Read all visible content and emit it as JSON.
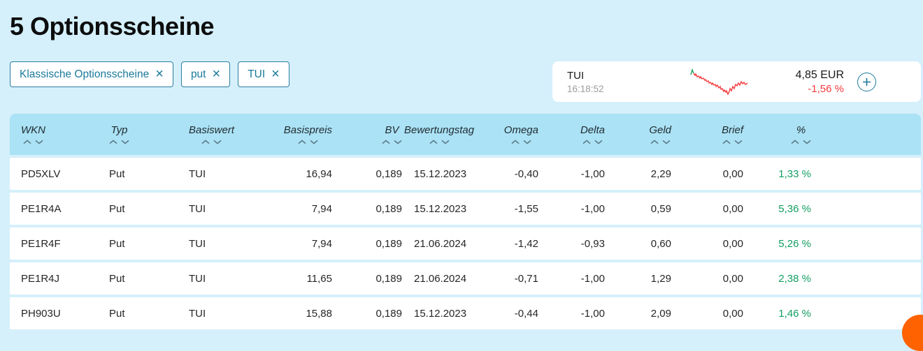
{
  "page": {
    "title": "5 Optionsscheine"
  },
  "filters": {
    "chips": [
      {
        "label": "Klassische Optionsscheine"
      },
      {
        "label": "put"
      },
      {
        "label": "TUI"
      }
    ],
    "remove_icon": "×"
  },
  "quote": {
    "name": "TUI",
    "time": "16:18:52",
    "price": "4,85 EUR",
    "change": "-1,56 %",
    "sparkline": {
      "green": [
        [
          3,
          11
        ],
        [
          5,
          4
        ],
        [
          7,
          9
        ]
      ],
      "red": [
        [
          7,
          9
        ],
        [
          9,
          12
        ],
        [
          10,
          10
        ],
        [
          12,
          14
        ],
        [
          14,
          13
        ],
        [
          16,
          16
        ],
        [
          17,
          14
        ],
        [
          19,
          17
        ],
        [
          21,
          16
        ],
        [
          23,
          19
        ],
        [
          24,
          18
        ],
        [
          26,
          21
        ],
        [
          28,
          20
        ],
        [
          29,
          23
        ],
        [
          31,
          22
        ],
        [
          33,
          25
        ],
        [
          34,
          23
        ],
        [
          36,
          26
        ],
        [
          38,
          25
        ],
        [
          39,
          28
        ],
        [
          41,
          26
        ],
        [
          43,
          30
        ],
        [
          45,
          28
        ],
        [
          46,
          32
        ],
        [
          48,
          31
        ],
        [
          50,
          35
        ],
        [
          51,
          33
        ],
        [
          53,
          36
        ],
        [
          54,
          34
        ],
        [
          56,
          39
        ],
        [
          58,
          35
        ],
        [
          59,
          31
        ],
        [
          61,
          34
        ],
        [
          63,
          28
        ],
        [
          65,
          31
        ],
        [
          67,
          25
        ],
        [
          69,
          27
        ],
        [
          71,
          23
        ],
        [
          73,
          26
        ],
        [
          75,
          21
        ],
        [
          77,
          24
        ],
        [
          79,
          22
        ],
        [
          81,
          25
        ],
        [
          84,
          23
        ]
      ]
    }
  },
  "table": {
    "columns": [
      {
        "label": "WKN"
      },
      {
        "label": "Typ"
      },
      {
        "label": "Basiswert"
      },
      {
        "label": "Basispreis"
      },
      {
        "label": "BV"
      },
      {
        "label": "Bewertungstag"
      },
      {
        "label": "Omega"
      },
      {
        "label": "Delta"
      },
      {
        "label": "Geld"
      },
      {
        "label": "Brief"
      },
      {
        "label": "%"
      }
    ],
    "rows": [
      {
        "wkn": "PD5XLV",
        "typ": "Put",
        "basiswert": "TUI",
        "basispreis": "16,94",
        "bv": "0,189",
        "bewertungstag": "15.12.2023",
        "omega": "-0,40",
        "delta": "-1,00",
        "geld": "2,29",
        "brief": "0,00",
        "pct": "1,33 %"
      },
      {
        "wkn": "PE1R4A",
        "typ": "Put",
        "basiswert": "TUI",
        "basispreis": "7,94",
        "bv": "0,189",
        "bewertungstag": "15.12.2023",
        "omega": "-1,55",
        "delta": "-1,00",
        "geld": "0,59",
        "brief": "0,00",
        "pct": "5,36 %"
      },
      {
        "wkn": "PE1R4F",
        "typ": "Put",
        "basiswert": "TUI",
        "basispreis": "7,94",
        "bv": "0,189",
        "bewertungstag": "21.06.2024",
        "omega": "-1,42",
        "delta": "-0,93",
        "geld": "0,60",
        "brief": "0,00",
        "pct": "5,26 %"
      },
      {
        "wkn": "PE1R4J",
        "typ": "Put",
        "basiswert": "TUI",
        "basispreis": "11,65",
        "bv": "0,189",
        "bewertungstag": "21.06.2024",
        "omega": "-0,71",
        "delta": "-1,00",
        "geld": "1,29",
        "brief": "0,00",
        "pct": "2,38 %"
      },
      {
        "wkn": "PH903U",
        "typ": "Put",
        "basiswert": "TUI",
        "basispreis": "15,88",
        "bv": "0,189",
        "bewertungstag": "15.12.2023",
        "omega": "-0,44",
        "delta": "-1,00",
        "geld": "2,09",
        "brief": "0,00",
        "pct": "1,46 %"
      }
    ]
  },
  "colors": {
    "page_bg": "#d5f0fb",
    "header_bg": "#abe2f5",
    "accent_teal": "#1a7a9c",
    "positive_green": "#149e62",
    "negative_red": "#f43b3f",
    "brand_orange": "#ff6200"
  }
}
